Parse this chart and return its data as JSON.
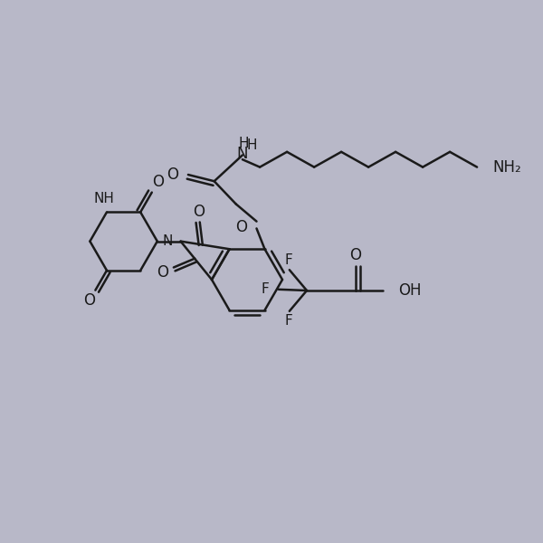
{
  "background_color": "#b8b8c8",
  "line_color": "#1a1a1a",
  "line_width": 1.8,
  "font_size": 11,
  "figsize": [
    6.0,
    6.0
  ],
  "dpi": 100,
  "xlim": [
    0,
    10
  ],
  "ylim": [
    0,
    10
  ]
}
